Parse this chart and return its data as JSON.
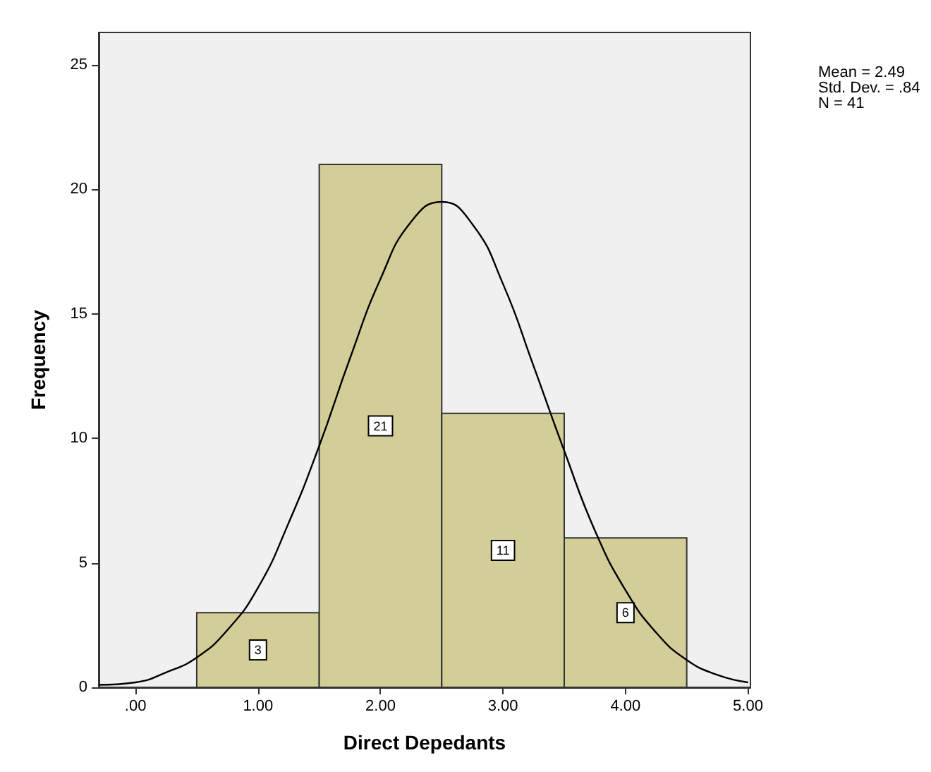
{
  "chart_data": {
    "type": "histogram",
    "xlabel": "Direct Depedants",
    "ylabel": "Frequency",
    "bins": [
      0.5,
      1.5,
      2.5,
      3.5,
      4.5
    ],
    "values": [
      3,
      21,
      11,
      6
    ],
    "value_labels": [
      "3",
      "21",
      "11",
      "6"
    ],
    "color": "#d3ce98",
    "series": [
      {
        "type": "line",
        "color": "#000000",
        "marker": "none",
        "x": [
          -0.3,
          0,
          0.25,
          0.5,
          0.75,
          1,
          1.25,
          1.5,
          1.75,
          2,
          2.25,
          2.5,
          2.75,
          3,
          3.25,
          3.5,
          3.75,
          4,
          4.25,
          4.5,
          4.75,
          5
        ],
        "values": [
          0.1,
          0.2,
          0.6,
          1.2,
          2.3,
          4,
          6.6,
          9.7,
          13.2,
          16.4,
          18.7,
          19.5,
          18.6,
          16.2,
          12.9,
          9.5,
          6.3,
          3.9,
          2.2,
          1.1,
          0.5,
          0.2
        ]
      }
    ],
    "xlim": [
      -0.3,
      5.02
    ],
    "xticks": [
      {
        "value": 0,
        "label": ".00"
      },
      {
        "value": 1,
        "label": "1.00"
      },
      {
        "value": 2,
        "label": "2.00"
      },
      {
        "value": 3,
        "label": "3.00"
      },
      {
        "value": 4,
        "label": "4.00"
      },
      {
        "value": 5,
        "label": "5.00"
      }
    ],
    "ylim": [
      0,
      26.3
    ],
    "yticks": [
      0,
      5,
      10,
      15,
      20,
      25
    ],
    "grid": false,
    "annotations": [
      "Mean = 2.49",
      "Std. Dev. = .84",
      "N = 41"
    ]
  }
}
